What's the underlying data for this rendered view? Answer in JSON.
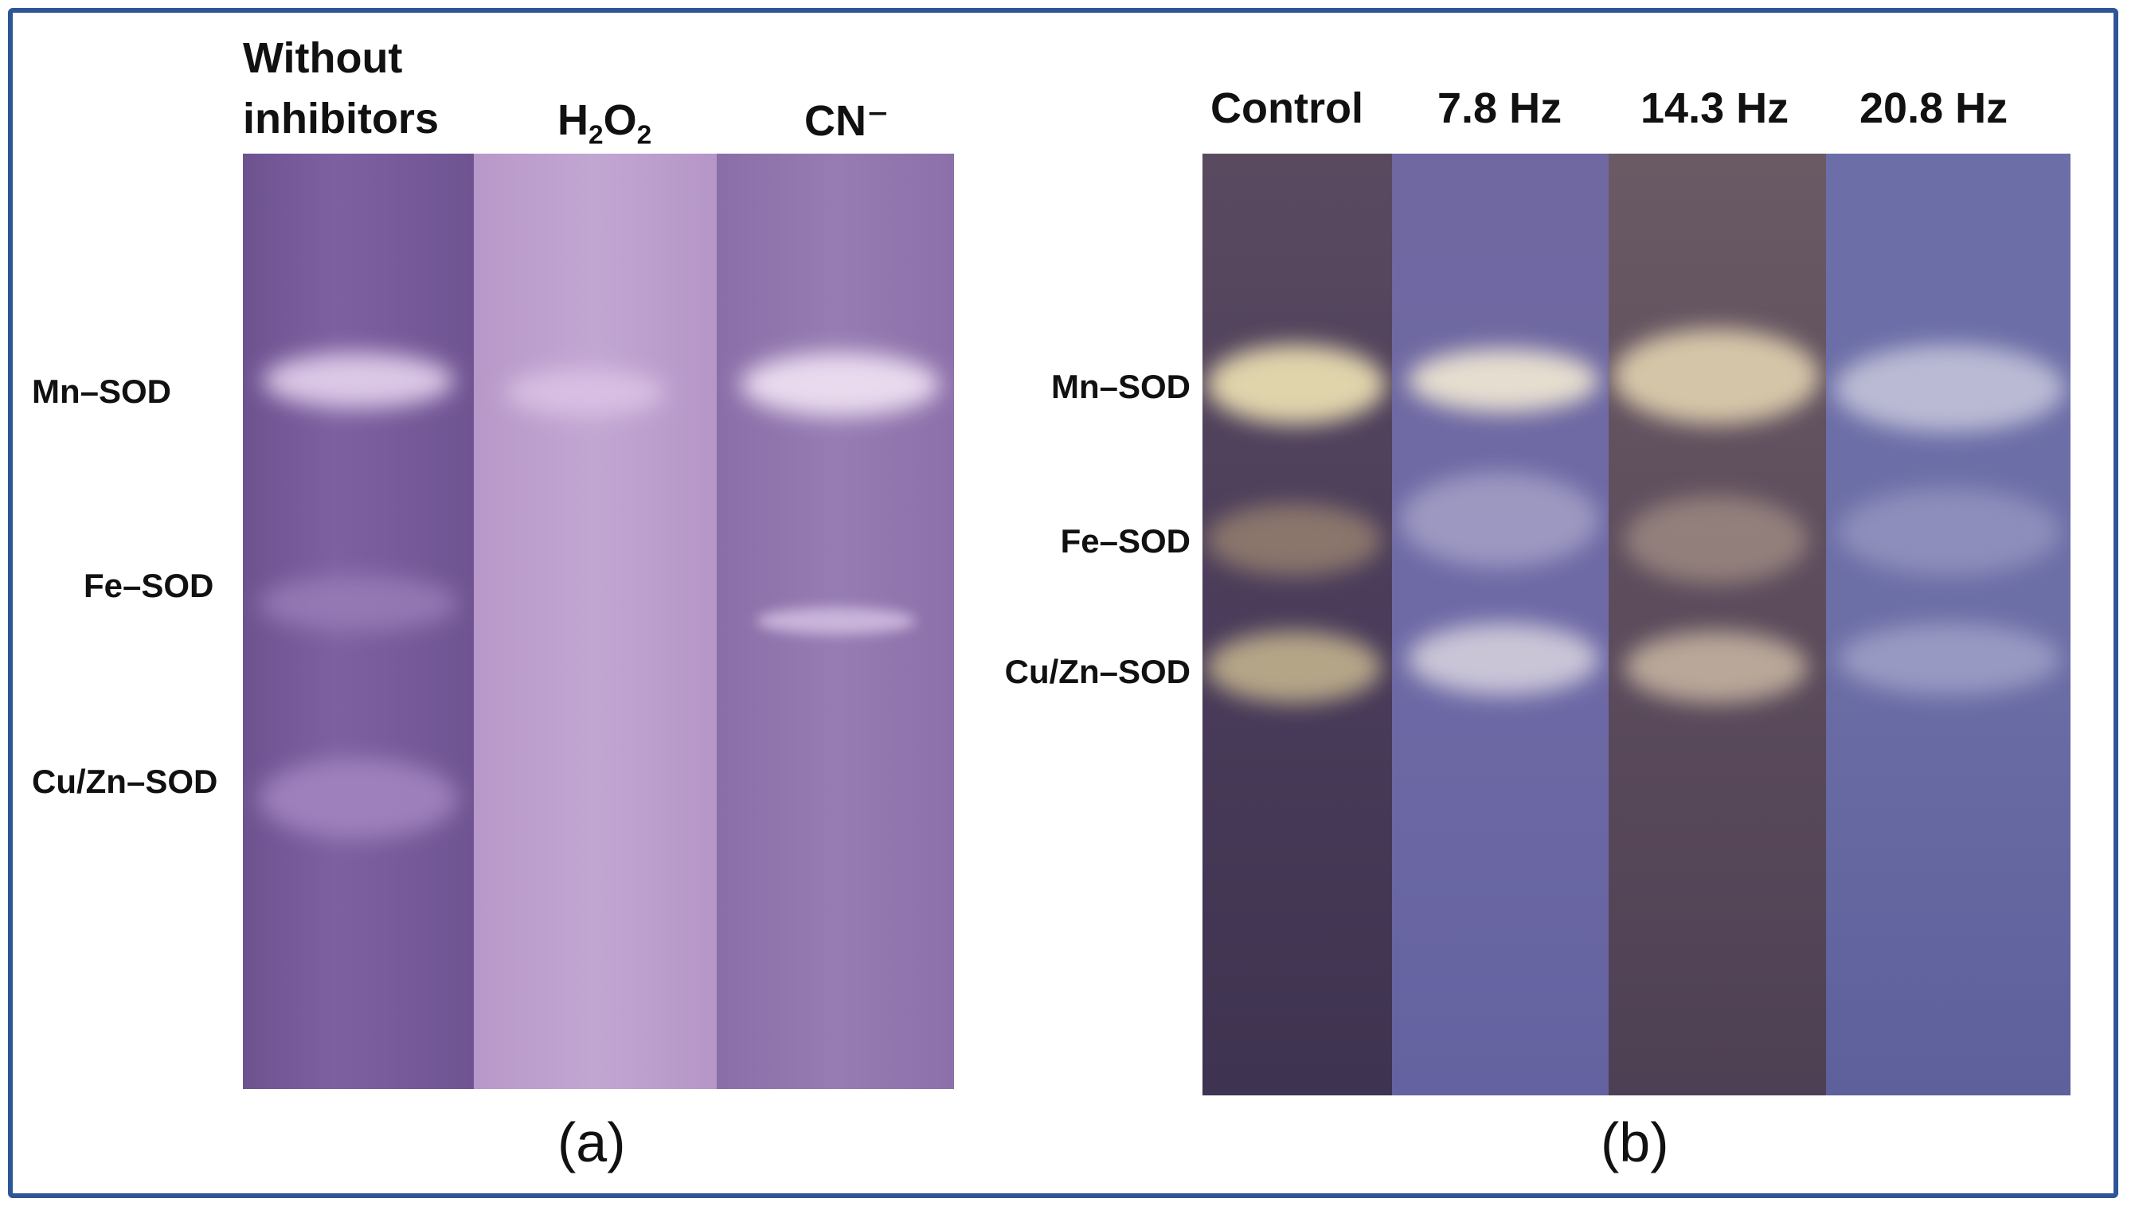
{
  "panel_a": {
    "panel_label": "(a)",
    "lane_titles": {
      "without_line1": "Without",
      "without_line2": "inhibitors",
      "h2o2_H": "H",
      "h2o2_2a": "2",
      "h2o2_O": "O",
      "h2o2_2b": "2",
      "cn": "CN⁻"
    },
    "band_labels": [
      "Mn–SOD",
      "Fe–SOD",
      "Cu/Zn–SOD"
    ]
  },
  "panel_b": {
    "panel_label": "(b)",
    "lane_titles": [
      "Control",
      "7.8 Hz",
      "14.3 Hz",
      "20.8 Hz"
    ],
    "band_labels": [
      "Mn–SOD",
      "Fe–SOD",
      "Cu/Zn–SOD"
    ]
  },
  "colors": {
    "frame": "#2f5597",
    "gel_a_lane1": "#7a5c9c",
    "gel_a_lane2": "#bfa0cf",
    "gel_a_lane3": "#9278ad",
    "gel_b_control": "#4a3a5a",
    "gel_b_7_8": "#6e6aa8",
    "gel_b_14_3": "#5a4a5c",
    "gel_b_20_8": "#6f70a8"
  }
}
